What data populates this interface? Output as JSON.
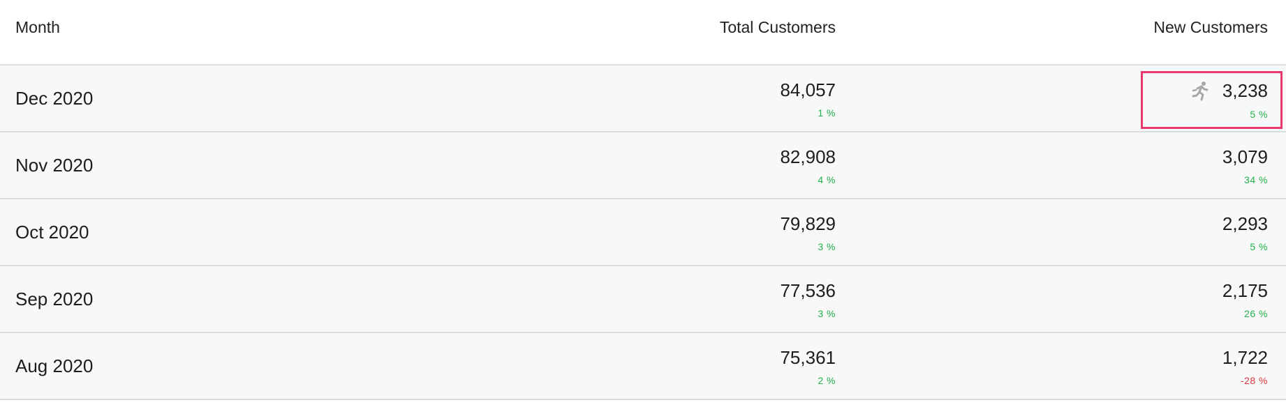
{
  "headers": {
    "month": "Month",
    "total": "Total Customers",
    "new": "New Customers"
  },
  "rows": [
    {
      "month": "Dec 2020",
      "total": "84,057",
      "total_pct": "1 %",
      "new": "3,238",
      "new_pct": "5 %"
    },
    {
      "month": "Nov 2020",
      "total": "82,908",
      "total_pct": "4 %",
      "new": "3,079",
      "new_pct": "34 %"
    },
    {
      "month": "Oct 2020",
      "total": "79,829",
      "total_pct": "3 %",
      "new": "2,293",
      "new_pct": "5 %"
    },
    {
      "month": "Sep 2020",
      "total": "77,536",
      "total_pct": "3 %",
      "new": "2,175",
      "new_pct": "26 %"
    },
    {
      "month": "Aug 2020",
      "total": "75,361",
      "total_pct": "2 %",
      "new": "1,722",
      "new_pct": "-28 %"
    }
  ],
  "icons": {
    "highlight": "running-person-icon"
  },
  "colors": {
    "positive": "#21b24b",
    "negative": "#e53340",
    "highlight_border": "#e8396c",
    "icon": "#a7a7a7"
  }
}
